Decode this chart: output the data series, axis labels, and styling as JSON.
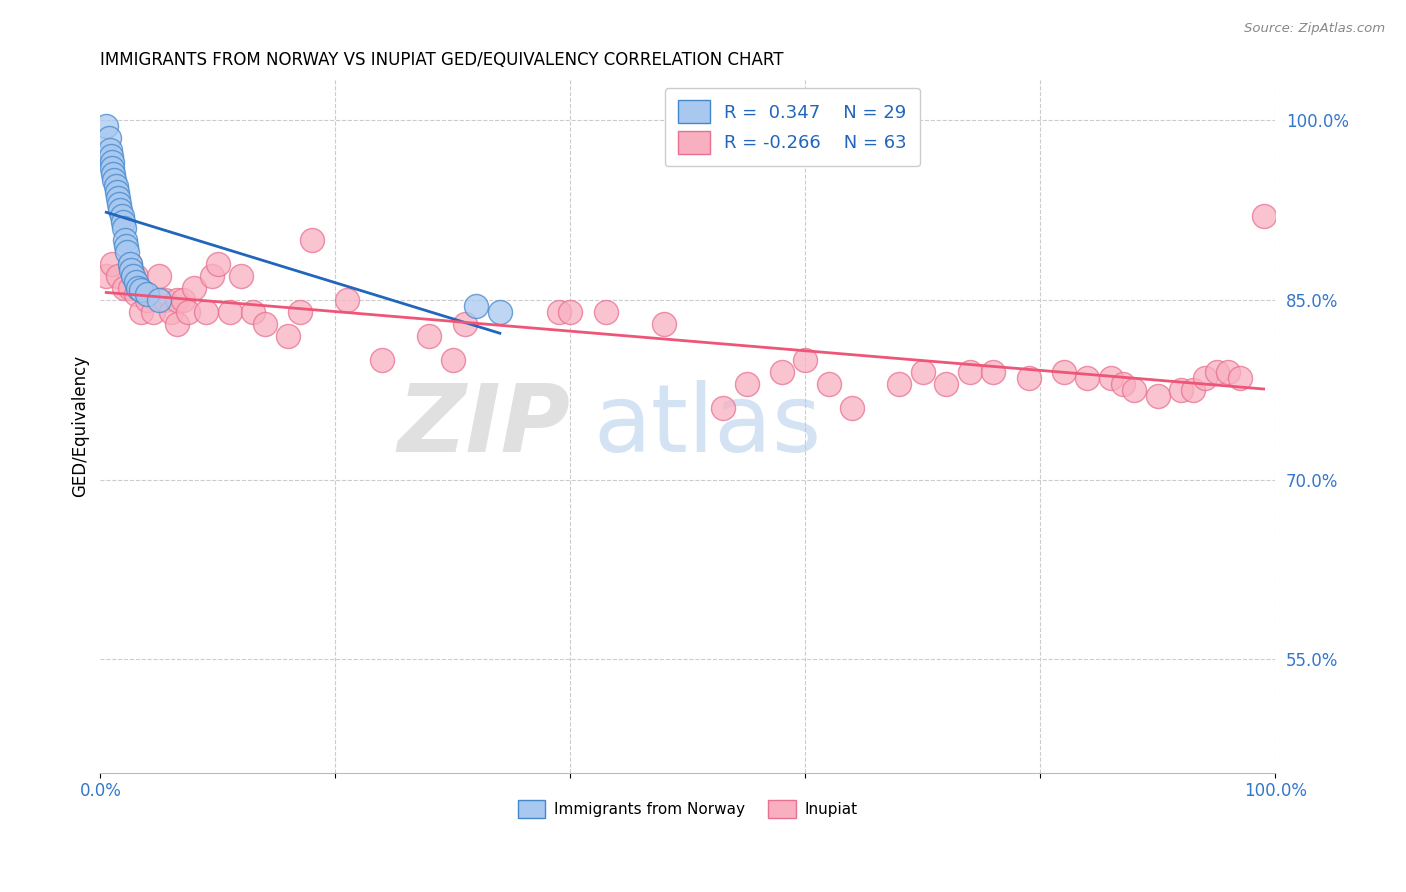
{
  "title": "IMMIGRANTS FROM NORWAY VS INUPIAT GED/EQUIVALENCY CORRELATION CHART",
  "source": "Source: ZipAtlas.com",
  "ylabel": "GED/Equivalency",
  "ytick_labels": [
    "100.0%",
    "85.0%",
    "70.0%",
    "55.0%"
  ],
  "ytick_values": [
    1.0,
    0.85,
    0.7,
    0.55
  ],
  "legend_label1": "Immigrants from Norway",
  "legend_label2": "Inupiat",
  "r1": "0.347",
  "n1": "29",
  "r2": "-0.266",
  "n2": "63",
  "color_blue_face": "#A8C8F0",
  "color_blue_edge": "#4488CC",
  "color_pink_face": "#F8B0C0",
  "color_pink_edge": "#E87090",
  "color_line_blue": "#2266BB",
  "color_line_pink": "#EE5577",
  "watermark_zip": "ZIP",
  "watermark_atlas": "atlas",
  "norway_x": [
    0.005,
    0.007,
    0.008,
    0.009,
    0.01,
    0.01,
    0.011,
    0.012,
    0.013,
    0.014,
    0.015,
    0.016,
    0.017,
    0.018,
    0.019,
    0.02,
    0.021,
    0.022,
    0.023,
    0.025,
    0.026,
    0.028,
    0.03,
    0.032,
    0.035,
    0.04,
    0.05,
    0.32,
    0.34
  ],
  "norway_y": [
    0.995,
    0.985,
    0.975,
    0.97,
    0.965,
    0.96,
    0.955,
    0.95,
    0.945,
    0.94,
    0.935,
    0.93,
    0.925,
    0.92,
    0.915,
    0.91,
    0.9,
    0.895,
    0.89,
    0.88,
    0.875,
    0.87,
    0.865,
    0.86,
    0.858,
    0.855,
    0.85,
    0.845,
    0.84
  ],
  "inupiat_x": [
    0.005,
    0.01,
    0.015,
    0.02,
    0.025,
    0.025,
    0.03,
    0.03,
    0.035,
    0.04,
    0.045,
    0.05,
    0.055,
    0.06,
    0.065,
    0.065,
    0.07,
    0.075,
    0.08,
    0.09,
    0.095,
    0.1,
    0.11,
    0.12,
    0.13,
    0.14,
    0.16,
    0.17,
    0.18,
    0.21,
    0.24,
    0.28,
    0.3,
    0.31,
    0.39,
    0.4,
    0.43,
    0.48,
    0.53,
    0.55,
    0.58,
    0.6,
    0.62,
    0.64,
    0.68,
    0.7,
    0.72,
    0.74,
    0.76,
    0.79,
    0.82,
    0.84,
    0.86,
    0.87,
    0.88,
    0.9,
    0.92,
    0.93,
    0.94,
    0.95,
    0.96,
    0.97,
    0.99
  ],
  "inupiat_y": [
    0.87,
    0.88,
    0.87,
    0.86,
    0.88,
    0.86,
    0.87,
    0.855,
    0.84,
    0.85,
    0.84,
    0.87,
    0.85,
    0.84,
    0.85,
    0.83,
    0.85,
    0.84,
    0.86,
    0.84,
    0.87,
    0.88,
    0.84,
    0.87,
    0.84,
    0.83,
    0.82,
    0.84,
    0.9,
    0.85,
    0.8,
    0.82,
    0.8,
    0.83,
    0.84,
    0.84,
    0.84,
    0.83,
    0.76,
    0.78,
    0.79,
    0.8,
    0.78,
    0.76,
    0.78,
    0.79,
    0.78,
    0.79,
    0.79,
    0.785,
    0.79,
    0.785,
    0.785,
    0.78,
    0.775,
    0.77,
    0.775,
    0.775,
    0.785,
    0.79,
    0.79,
    0.785,
    0.92
  ]
}
